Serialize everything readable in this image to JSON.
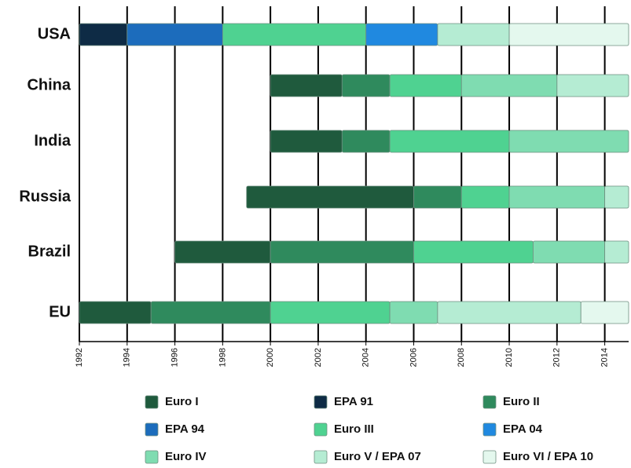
{
  "chart_data": {
    "type": "timeline",
    "categories": [
      "USA",
      "China",
      "India",
      "Russia",
      "Brazil",
      "EU"
    ],
    "series": [
      {
        "name": "Euro I",
        "color": "#1f5a3d",
        "values": [
          null,
          [
            2000,
            2003
          ],
          [
            2000,
            2003
          ],
          [
            1999,
            2006
          ],
          [
            1996,
            2000
          ],
          [
            1992,
            1995
          ]
        ]
      },
      {
        "name": "EPA 91",
        "color": "#0e2b45",
        "values": [
          [
            1992,
            1994
          ],
          null,
          null,
          null,
          null,
          null
        ]
      },
      {
        "name": "Euro II",
        "color": "#2f8a5d",
        "values": [
          null,
          [
            2003,
            2005
          ],
          [
            2003,
            2005
          ],
          [
            2006,
            2008
          ],
          [
            2000,
            2006
          ],
          [
            1995,
            2000
          ]
        ]
      },
      {
        "name": "EPA 94",
        "color": "#1c6cbc",
        "values": [
          [
            1994,
            1998
          ],
          null,
          null,
          null,
          null,
          null
        ]
      },
      {
        "name": "Euro III",
        "color": "#4fd291",
        "values": [
          [
            1998,
            2004
          ],
          [
            2005,
            2008
          ],
          [
            2005,
            2010
          ],
          [
            2008,
            2010
          ],
          [
            2006,
            2011
          ],
          [
            2000,
            2005
          ]
        ]
      },
      {
        "name": "EPA 04",
        "color": "#2089e0",
        "values": [
          [
            2004,
            2007
          ],
          null,
          null,
          null,
          null,
          null
        ]
      },
      {
        "name": "Euro IV",
        "color": "#7fdcb1",
        "values": [
          null,
          [
            2008,
            2012
          ],
          [
            2010,
            2015
          ],
          [
            2010,
            2014
          ],
          [
            2011,
            2014
          ],
          [
            2005,
            2007
          ]
        ]
      },
      {
        "name": "Euro V / EPA 07",
        "color": "#b5ecd3",
        "values": [
          [
            2007,
            2010
          ],
          [
            2012,
            2015
          ],
          null,
          [
            2014,
            2015
          ],
          [
            2014,
            2015
          ],
          [
            2007,
            2013
          ]
        ]
      },
      {
        "name": "Euro VI / EPA 10",
        "color": "#e4f8ee",
        "values": [
          [
            2010,
            2015
          ],
          null,
          null,
          null,
          null,
          [
            2013,
            2015
          ]
        ]
      }
    ],
    "xlim": [
      1992,
      2015
    ],
    "xticks": [
      1992,
      1994,
      1996,
      1998,
      2000,
      2002,
      2004,
      2006,
      2008,
      2010,
      2012,
      2014
    ],
    "grid": true
  }
}
